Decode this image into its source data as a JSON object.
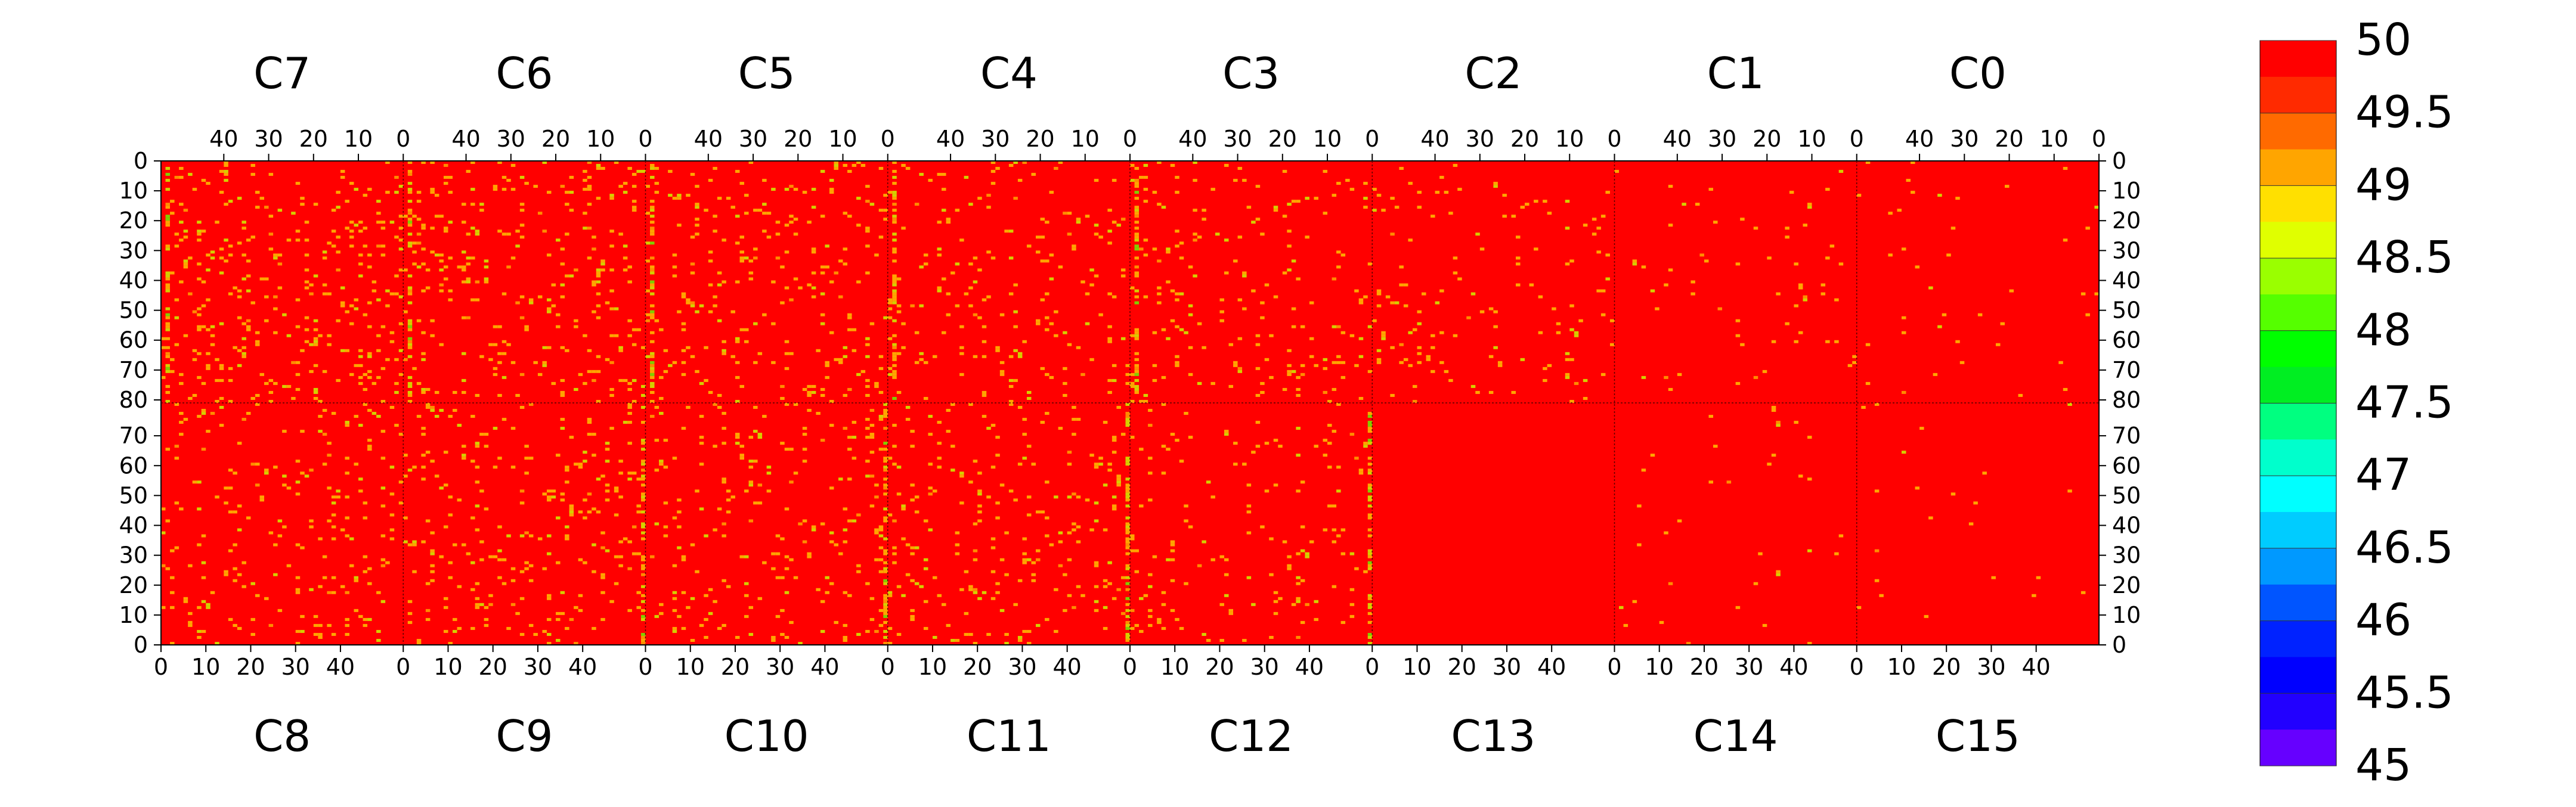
{
  "chart_data": {
    "type": "heatmap",
    "title": "",
    "xlabel": "",
    "ylabel": "",
    "top_chips": [
      "C7",
      "C6",
      "C5",
      "C4",
      "C3",
      "C2",
      "C1",
      "C0"
    ],
    "bottom_chips": [
      "C8",
      "C9",
      "C10",
      "C11",
      "C12",
      "C13",
      "C14",
      "C15"
    ],
    "columns_per_chip": 54,
    "rows_per_half": 81,
    "top_x_ticks": [
      40,
      30,
      20,
      10,
      0
    ],
    "bottom_x_ticks": [
      0,
      10,
      20,
      30,
      40
    ],
    "top_y_ticks": [
      0,
      10,
      20,
      30,
      40,
      50,
      60,
      70,
      80
    ],
    "bottom_y_ticks": [
      80,
      70,
      60,
      50,
      40,
      30,
      20,
      10,
      0
    ],
    "x_direction_top": "decreasing left to right, 0 at chip right edge",
    "x_direction_bottom": "increasing left to right, 0 at chip left edge",
    "y_direction_top": "0 at top edge increasing downward to 80 at middle",
    "y_direction_bottom": "0 at bottom edge increasing upward to 80 at middle",
    "zlim": [
      45,
      50
    ],
    "colorbar_ticks": [
      "50",
      "49.5",
      "49",
      "48.5",
      "48",
      "47.5",
      "47",
      "46.5",
      "46",
      "45.5",
      "45"
    ],
    "colorbar_colors": [
      "#ff0000",
      "#ff2a00",
      "#ff6a00",
      "#ffa500",
      "#ffe000",
      "#e0ff00",
      "#9aff00",
      "#55ff00",
      "#00ff00",
      "#00ee22",
      "#00ff80",
      "#00ffcc",
      "#00ffff",
      "#00ccff",
      "#0099ff",
      "#0055ff",
      "#0022ff",
      "#0000ff",
      "#2200ff",
      "#6600ff"
    ],
    "background_value": 50,
    "background_color": "#ff0000",
    "pixel_colors": {
      "dim": "#ffa500",
      "dim2": "#ff8c00",
      "yellow": "#d4d000",
      "green": "#7fd000"
    },
    "column_activity": {
      "C7": 0.07,
      "C6": 0.055,
      "C5": 0.05,
      "C4": 0.045,
      "C3": 0.035,
      "C2": 0.03,
      "C1": 0.012,
      "C0": 0.01,
      "C8": 0.045,
      "C9": 0.05,
      "C10": 0.05,
      "C11": 0.045,
      "C12": 0.035,
      "C13": 0.0,
      "C14": 0.006,
      "C15": 0.006
    },
    "hot_columns": [
      {
        "chip": "C7",
        "col": 1,
        "half": "top"
      },
      {
        "chip": "C7",
        "col": 1,
        "half": "bottom"
      },
      {
        "chip": "C6",
        "col": 1,
        "half": "top"
      },
      {
        "chip": "C5",
        "col": 1,
        "half": "top"
      },
      {
        "chip": "C4",
        "col": 1,
        "half": "top"
      },
      {
        "chip": "C3",
        "col": 1,
        "half": "top"
      },
      {
        "chip": "C9",
        "col": 53,
        "half": "bottom"
      },
      {
        "chip": "C10",
        "col": 53,
        "half": "bottom"
      },
      {
        "chip": "C11",
        "col": 53,
        "half": "bottom"
      },
      {
        "chip": "C12",
        "col": 53,
        "half": "bottom"
      }
    ]
  }
}
